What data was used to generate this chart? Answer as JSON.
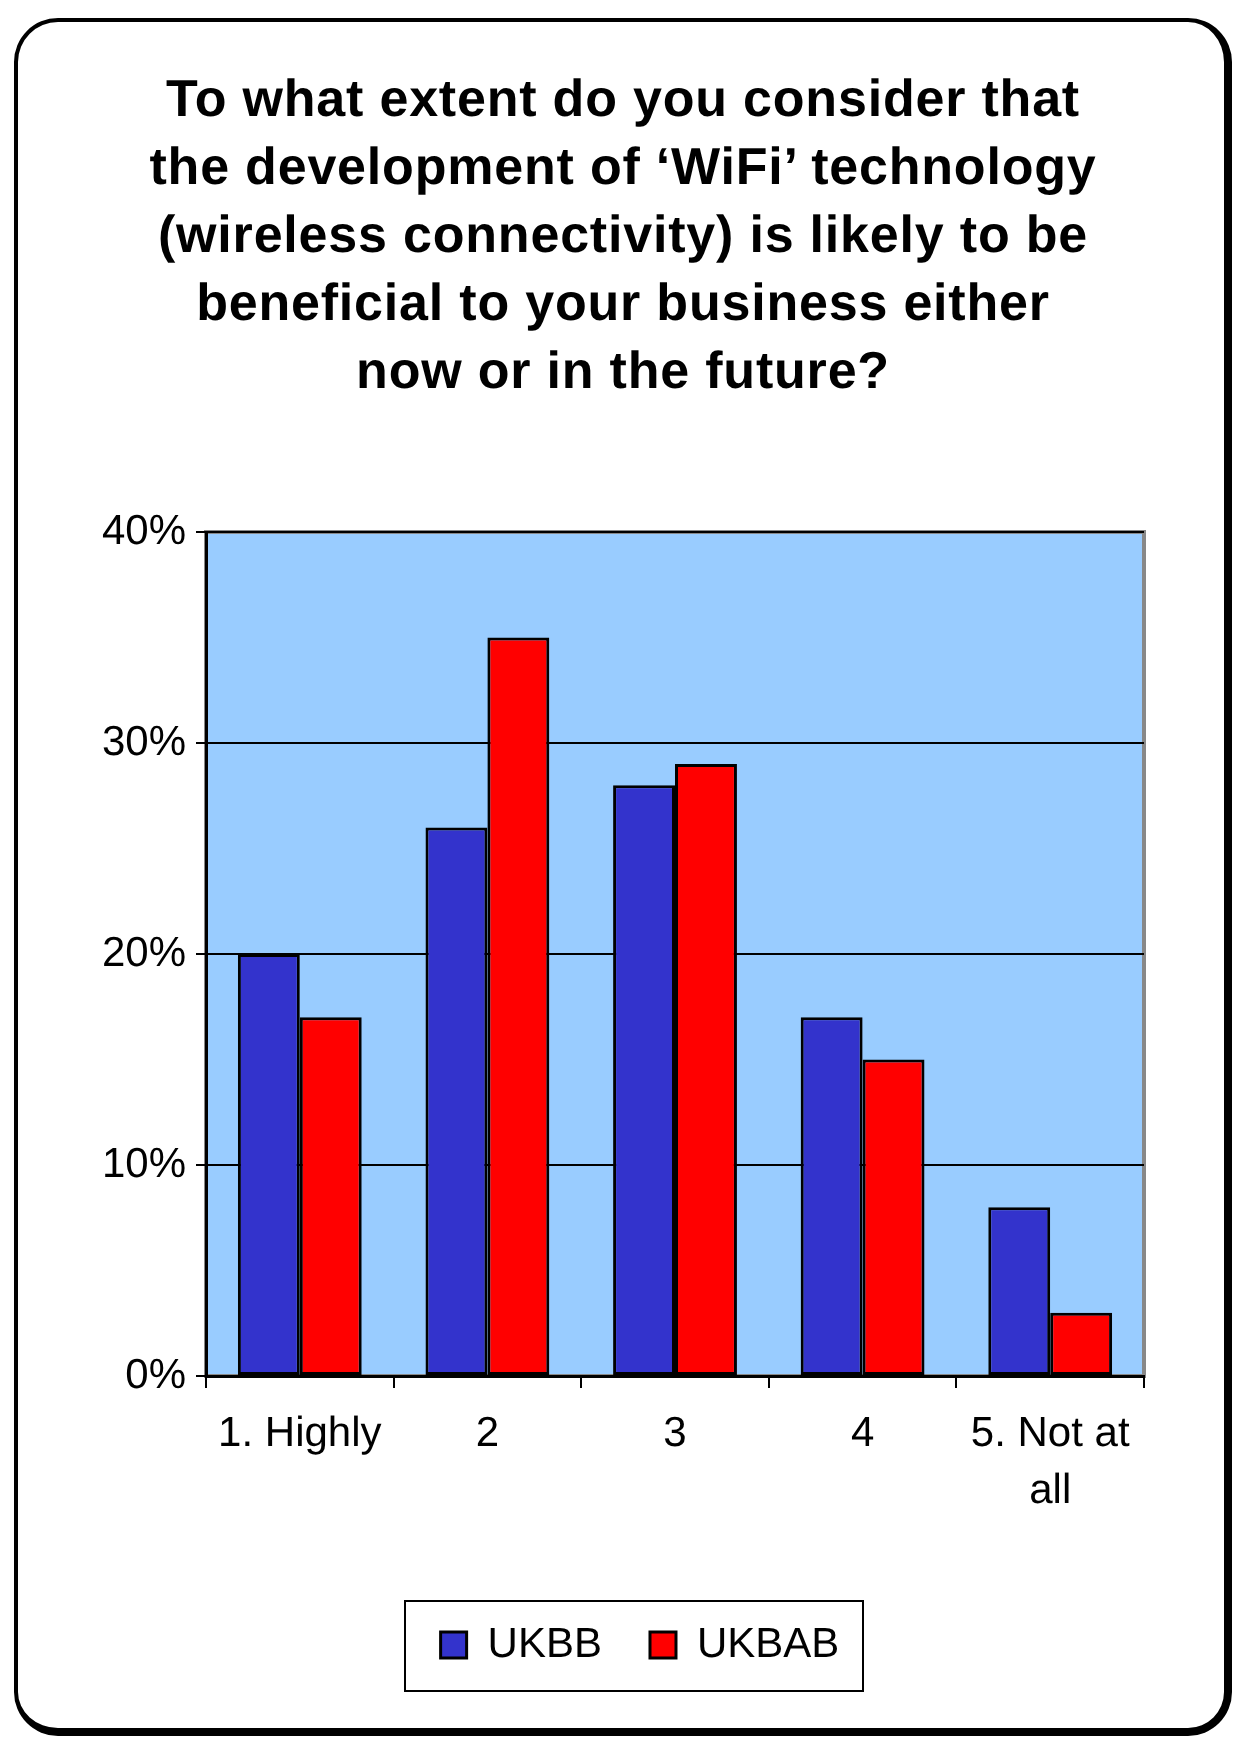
{
  "chart_data": {
    "type": "bar",
    "title": "To what extent do you consider that the development of ‘WiFi’ technology (wireless connectivity) is likely to be beneficial to your business either now or in the future?",
    "categories": [
      "1. Highly",
      "2",
      "3",
      "4",
      "5. Not at all"
    ],
    "series": [
      {
        "name": "UKBB",
        "color": "#3333cc",
        "values": [
          20,
          26,
          28,
          17,
          8
        ]
      },
      {
        "name": "UKBAB",
        "color": "#ff0000",
        "values": [
          17,
          35,
          29,
          15,
          3
        ]
      }
    ],
    "ylim": [
      0,
      40
    ],
    "yticks": [
      {
        "value": 0,
        "label": "0%"
      },
      {
        "value": 10,
        "label": "10%"
      },
      {
        "value": 20,
        "label": "20%"
      },
      {
        "value": 30,
        "label": "30%"
      },
      {
        "value": 40,
        "label": "40%"
      }
    ],
    "grid": "y",
    "legend": "bottom"
  }
}
